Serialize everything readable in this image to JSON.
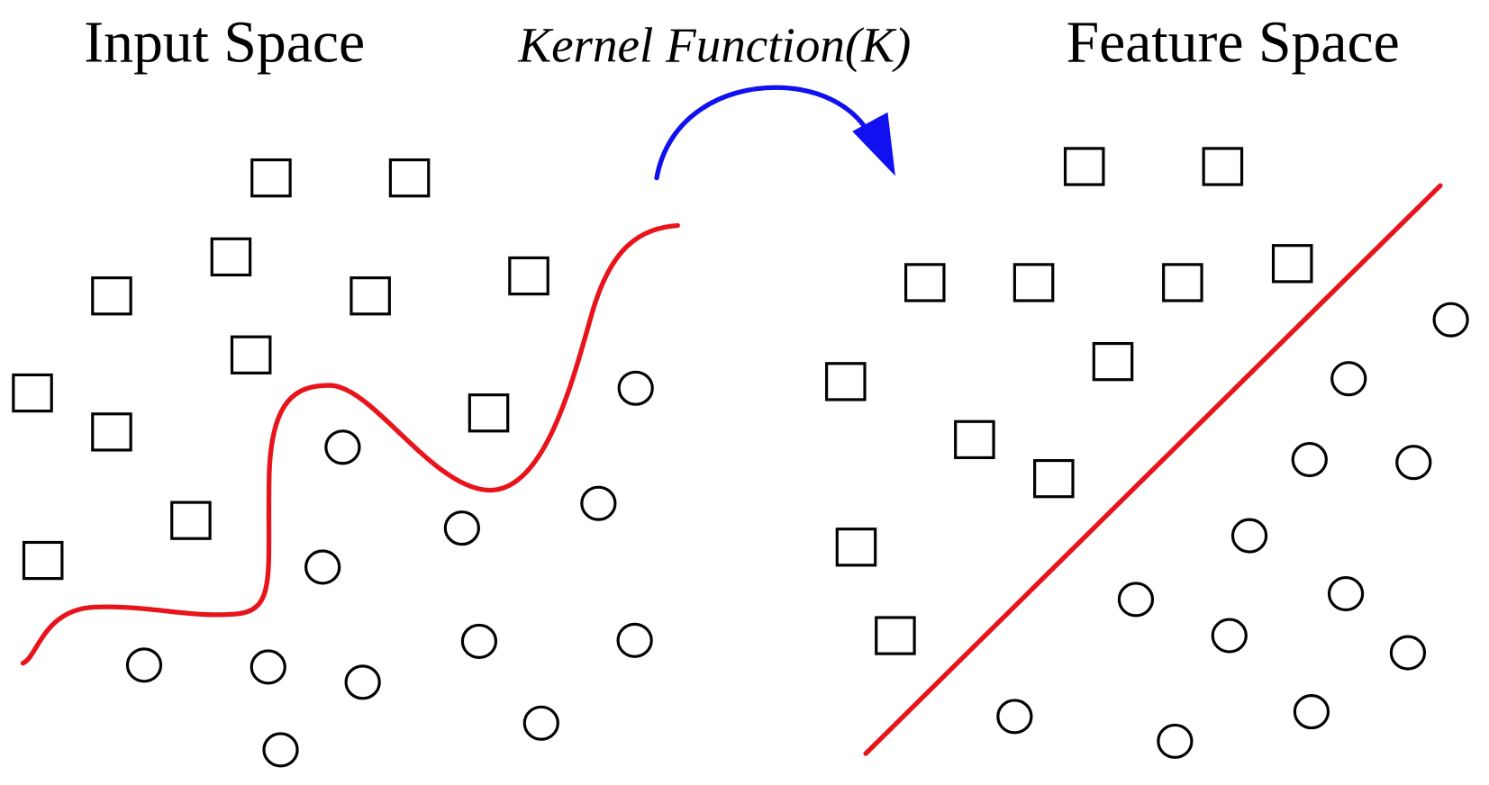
{
  "titles": {
    "input_space": "Input Space",
    "kernel": "Kernel Function(K)",
    "feature_space": "Feature Space"
  },
  "colors": {
    "boundary": "#e8141b",
    "arrow": "#1010f0",
    "markers": "#000000"
  },
  "legend_shapes": {
    "class_a": "square",
    "class_b": "circle"
  }
}
